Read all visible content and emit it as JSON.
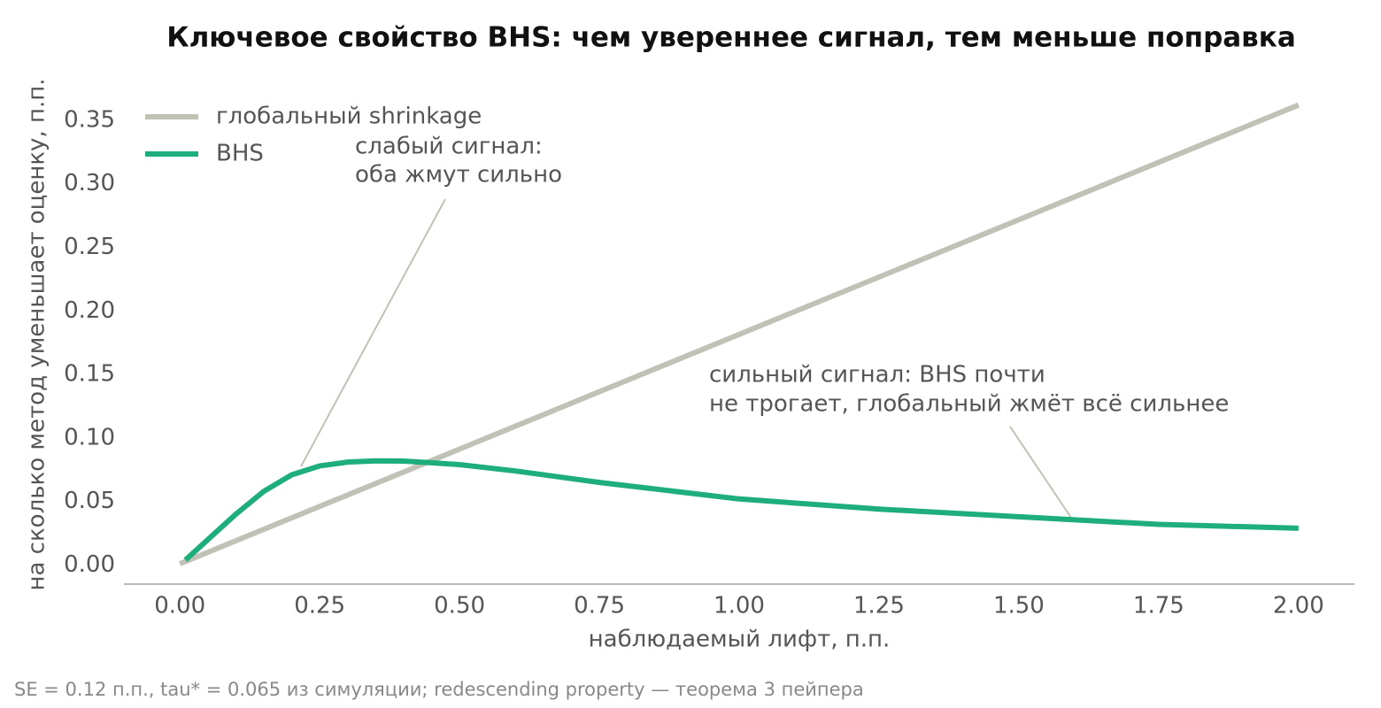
{
  "chart_data": {
    "type": "line",
    "title": "Ключевое свойство BHS: чем увереннее сигнал, тем меньше поправка",
    "x_label": "наблюдаемый лифт, п.п.",
    "y_label": "на сколько метод уменьшает оценку, п.п.",
    "footnote": "SE = 0.12 п.п., tau* = 0.065 из симуляции; redescending property — теорема 3 пейпера",
    "xlim": [
      -0.1,
      2.1
    ],
    "ylim": [
      -0.015,
      0.375
    ],
    "xticks": [
      {
        "value": 0,
        "label": "0.00"
      },
      {
        "value": 0.25,
        "label": "0.25"
      },
      {
        "value": 0.5,
        "label": "0.50"
      },
      {
        "value": 0.75,
        "label": "0.75"
      },
      {
        "value": 1,
        "label": "1.00"
      },
      {
        "value": 1.25,
        "label": "1.25"
      },
      {
        "value": 1.5,
        "label": "1.50"
      },
      {
        "value": 1.75,
        "label": "1.75"
      },
      {
        "value": 2,
        "label": "2.00"
      }
    ],
    "yticks": [
      {
        "value": 0,
        "label": "0.00"
      },
      {
        "value": 0.05,
        "label": "0.05"
      },
      {
        "value": 0.1,
        "label": "0.10"
      },
      {
        "value": 0.15,
        "label": "0.15"
      },
      {
        "value": 0.2,
        "label": "0.20"
      },
      {
        "value": 0.25,
        "label": "0.25"
      },
      {
        "value": 0.3,
        "label": "0.30"
      },
      {
        "value": 0.35,
        "label": "0.35"
      }
    ],
    "grid": false,
    "legend": "upper left",
    "series": [
      {
        "name": "глобальный shrinkage",
        "color": "#c0c2b6",
        "x": [
          0,
          2
        ],
        "values": [
          0.001,
          0.362
        ]
      },
      {
        "name": "BHS",
        "color": "#1eae7b",
        "x": [
          0.01,
          0.05,
          0.1,
          0.15,
          0.2,
          0.25,
          0.3,
          0.35,
          0.4,
          0.45,
          0.5,
          0.6,
          0.75,
          1.0,
          1.25,
          1.5,
          1.75,
          2.0
        ],
        "values": [
          0.004,
          0.02,
          0.04,
          0.058,
          0.071,
          0.078,
          0.081,
          0.082,
          0.0818,
          0.0805,
          0.079,
          0.074,
          0.065,
          0.052,
          0.044,
          0.038,
          0.032,
          0.029
        ]
      }
    ],
    "annotations": [
      {
        "lines": [
          "слабый сигнал:",
          "оба жмут сильно"
        ]
      },
      {
        "lines": [
          "сильный сигнал: BHS почти",
          "не трогает, глобальный жмёт всё сильнее"
        ]
      }
    ]
  }
}
